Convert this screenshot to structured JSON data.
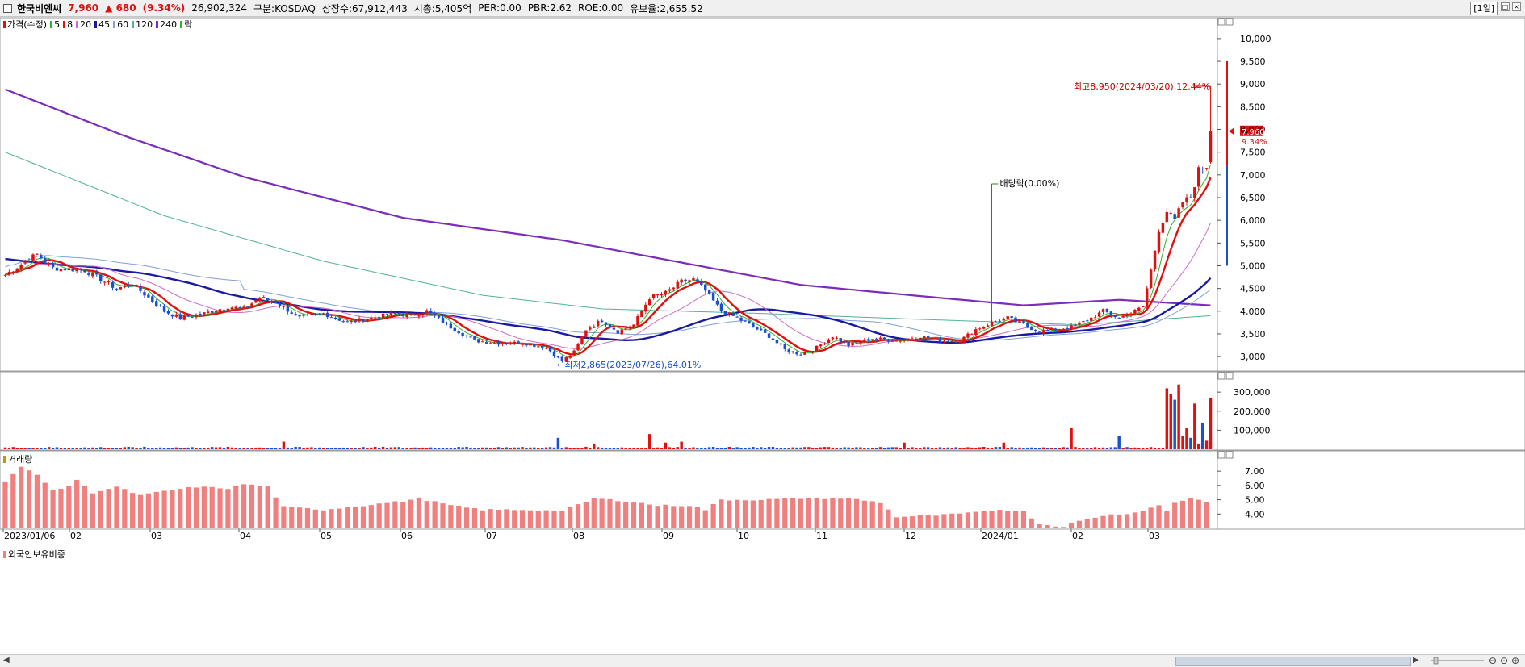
{
  "info": {
    "name": "한국비엔씨",
    "price": "7,960",
    "change": "▲ 680",
    "change_pct": "(9.34%)",
    "volume": "26,902,324",
    "market": "구분:KOSDAQ",
    "shares": "상장수:67,912,443",
    "mcap": "시총:5,405억",
    "per": "PER:0.00",
    "pbr": "PBR:2.62",
    "roe": "ROE:0.00",
    "float": "유보율:2,655.52",
    "period": "[1일]"
  },
  "colors": {
    "up": "#e01010",
    "down": "#1a50d0",
    "ma5": "#2db52d",
    "ma8": "#e01010",
    "ma20": "#d26ac8",
    "ma45": "#1a1aa0",
    "ma60": "#7fa0d8",
    "ma120": "#4fb39a",
    "ma240": "#7b2cb8",
    "foreign_bar": "#f08080"
  },
  "legend": [
    {
      "label": "가격(수정)",
      "color": "#e01010"
    },
    {
      "label": "5",
      "color": "#2db52d"
    },
    {
      "label": "8",
      "color": "#e01010"
    },
    {
      "label": "20",
      "color": "#d26ac8"
    },
    {
      "label": "45",
      "color": "#1a1aa0"
    },
    {
      "label": "60",
      "color": "#7fa0d8"
    },
    {
      "label": "120",
      "color": "#4fb39a"
    },
    {
      "label": "240",
      "color": "#7b2cb8"
    },
    {
      "label": "락",
      "color": "#2db52d"
    }
  ],
  "panels": {
    "volume_title": "거래량",
    "foreign_title": "외국인보유비중"
  },
  "chart_data": [
    {
      "type": "candlestick",
      "title": "가격(수정)",
      "x_labels": [
        "2023/01/06",
        "02",
        "03",
        "04",
        "05",
        "06",
        "07",
        "08",
        "09",
        "10",
        "11",
        "12",
        "2024/01",
        "02",
        "03"
      ],
      "yticks": [
        "3,000",
        "3,500",
        "4,000",
        "4,500",
        "5,000",
        "5,500",
        "6,000",
        "6,500",
        "7,000",
        "7,500",
        "8,000",
        "8,500",
        "9,000",
        "9,500",
        "10,000"
      ],
      "ylim": [
        2700,
        10300
      ],
      "last_price_label": "7,960",
      "last_pct_label": "9.34%",
      "annotations": {
        "high": "최고8,950(2024/03/20),12.44%",
        "low": "최저2,865(2023/07/26),64.01%",
        "dividend": "배당락(0.00%)"
      },
      "close_anchors": [
        [
          0,
          4800
        ],
        [
          6,
          5150
        ],
        [
          8,
          5250
        ],
        [
          12,
          4950
        ],
        [
          20,
          4900
        ],
        [
          28,
          4500
        ],
        [
          32,
          4600
        ],
        [
          40,
          4000
        ],
        [
          44,
          3850
        ],
        [
          50,
          3950
        ],
        [
          56,
          4100
        ],
        [
          60,
          4050
        ],
        [
          64,
          4300
        ],
        [
          68,
          4200
        ],
        [
          74,
          3850
        ],
        [
          80,
          3950
        ],
        [
          86,
          3750
        ],
        [
          92,
          3850
        ],
        [
          98,
          3950
        ],
        [
          102,
          3900
        ],
        [
          106,
          4000
        ],
        [
          112,
          3650
        ],
        [
          118,
          3350
        ],
        [
          124,
          3300
        ],
        [
          130,
          3300
        ],
        [
          136,
          3200
        ],
        [
          140,
          2900
        ],
        [
          143,
          3100
        ],
        [
          146,
          3600
        ],
        [
          150,
          3800
        ],
        [
          154,
          3550
        ],
        [
          158,
          3700
        ],
        [
          162,
          4300
        ],
        [
          166,
          4400
        ],
        [
          170,
          4650
        ],
        [
          173,
          4700
        ],
        [
          176,
          4450
        ],
        [
          180,
          4000
        ],
        [
          184,
          3850
        ],
        [
          188,
          3650
        ],
        [
          192,
          3450
        ],
        [
          196,
          3150
        ],
        [
          200,
          3050
        ],
        [
          204,
          3200
        ],
        [
          208,
          3450
        ],
        [
          212,
          3250
        ],
        [
          218,
          3400
        ],
        [
          224,
          3350
        ],
        [
          230,
          3450
        ],
        [
          236,
          3350
        ],
        [
          240,
          3350
        ],
        [
          244,
          3600
        ],
        [
          248,
          3750
        ],
        [
          252,
          3850
        ],
        [
          256,
          3700
        ],
        [
          260,
          3550
        ],
        [
          264,
          3600
        ],
        [
          268,
          3650
        ],
        [
          272,
          3800
        ],
        [
          276,
          4000
        ],
        [
          280,
          3850
        ],
        [
          284,
          4000
        ],
        [
          286,
          4100
        ],
        [
          288,
          4900
        ],
        [
          290,
          5800
        ],
        [
          292,
          6200
        ],
        [
          294,
          6000
        ],
        [
          296,
          6400
        ],
        [
          298,
          6500
        ],
        [
          300,
          7100
        ],
        [
          302,
          7200
        ],
        [
          303,
          7960
        ]
      ],
      "high_low": {
        "high": 8950,
        "low": 2865
      }
    },
    {
      "type": "bar",
      "title": "거래량",
      "yticks": [
        "100,000",
        "200,000",
        "300,000"
      ],
      "ylim": [
        0,
        360000
      ],
      "spikes": [
        [
          70,
          40000
        ],
        [
          139,
          60000
        ],
        [
          148,
          30000
        ],
        [
          162,
          80000
        ],
        [
          166,
          35000
        ],
        [
          170,
          40000
        ],
        [
          226,
          35000
        ],
        [
          251,
          35000
        ],
        [
          268,
          110000
        ],
        [
          280,
          70000
        ],
        [
          292,
          320000
        ],
        [
          293,
          290000
        ],
        [
          294,
          260000
        ],
        [
          295,
          340000
        ],
        [
          296,
          70000
        ],
        [
          297,
          110000
        ],
        [
          298,
          60000
        ],
        [
          299,
          240000
        ],
        [
          300,
          30000
        ],
        [
          301,
          140000
        ],
        [
          302,
          45000
        ],
        [
          303,
          270000
        ]
      ]
    },
    {
      "type": "bar",
      "title": "외국인보유비중",
      "yticks": [
        "4.00",
        "5.00",
        "6.00",
        "7.00"
      ],
      "ylim": [
        3.0,
        7.8
      ],
      "anchors": [
        [
          0,
          6.2
        ],
        [
          4,
          7.3
        ],
        [
          8,
          6.8
        ],
        [
          12,
          5.6
        ],
        [
          16,
          6.0
        ],
        [
          18,
          6.4
        ],
        [
          22,
          5.5
        ],
        [
          28,
          5.9
        ],
        [
          34,
          5.3
        ],
        [
          40,
          5.6
        ],
        [
          48,
          5.9
        ],
        [
          56,
          5.8
        ],
        [
          60,
          6.1
        ],
        [
          66,
          5.9
        ],
        [
          70,
          4.5
        ],
        [
          80,
          4.3
        ],
        [
          90,
          4.6
        ],
        [
          100,
          4.9
        ],
        [
          104,
          5.1
        ],
        [
          112,
          4.6
        ],
        [
          120,
          4.3
        ],
        [
          130,
          4.3
        ],
        [
          140,
          4.2
        ],
        [
          148,
          5.1
        ],
        [
          156,
          4.9
        ],
        [
          164,
          4.6
        ],
        [
          172,
          4.6
        ],
        [
          176,
          4.3
        ],
        [
          180,
          5.0
        ],
        [
          190,
          5.0
        ],
        [
          200,
          5.1
        ],
        [
          212,
          5.1
        ],
        [
          220,
          4.8
        ],
        [
          224,
          3.8
        ],
        [
          234,
          3.9
        ],
        [
          244,
          4.1
        ],
        [
          250,
          4.3
        ],
        [
          256,
          4.2
        ],
        [
          260,
          3.3
        ],
        [
          266,
          3.1
        ],
        [
          270,
          3.5
        ],
        [
          276,
          3.9
        ],
        [
          284,
          4.1
        ],
        [
          290,
          4.6
        ],
        [
          292,
          4.2
        ],
        [
          294,
          4.8
        ],
        [
          298,
          5.1
        ],
        [
          303,
          4.8
        ]
      ]
    }
  ]
}
